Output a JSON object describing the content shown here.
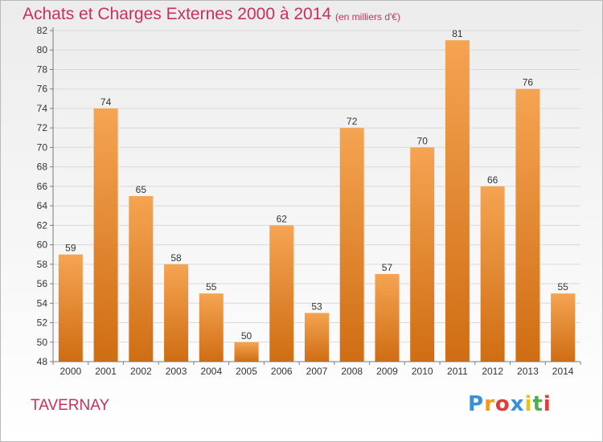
{
  "header": {
    "title": "Achats et Charges Externes 2000 à 2014",
    "subtitle": "(en milliers d'€)"
  },
  "footer": {
    "town": "TAVERNAY",
    "logo_letters": [
      "P",
      "r",
      "o",
      "x",
      "i",
      "t",
      "i"
    ],
    "logo_colors": [
      "#3a8fd8",
      "#f29a1f",
      "#e23b3b",
      "#3a8fd8",
      "#e8c21a",
      "#4caf50",
      "#e23b3b"
    ]
  },
  "chart_data": {
    "type": "bar",
    "title": "Achats et Charges Externes 2000 à 2014",
    "subtitle": "(en milliers d'€)",
    "categories": [
      "2000",
      "2001",
      "2002",
      "2003",
      "2004",
      "2005",
      "2006",
      "2007",
      "2008",
      "2009",
      "2010",
      "2011",
      "2012",
      "2013",
      "2014"
    ],
    "values": [
      59,
      74,
      65,
      58,
      55,
      50,
      62,
      53,
      72,
      57,
      70,
      81,
      66,
      76,
      55
    ],
    "ylim": [
      48,
      82
    ],
    "yticks": [
      48,
      50,
      52,
      54,
      56,
      58,
      60,
      62,
      64,
      66,
      68,
      70,
      72,
      74,
      76,
      78,
      80,
      82
    ],
    "grid": true,
    "bar_color_top": "#f5a452",
    "bar_color_bottom": "#cf6d13"
  }
}
